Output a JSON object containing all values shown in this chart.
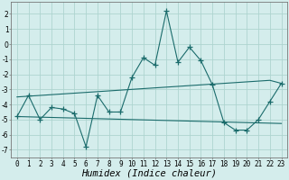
{
  "xlabel": "Humidex (Indice chaleur)",
  "background_color": "#d4edec",
  "grid_color": "#aed4d0",
  "line_color": "#1a6b6b",
  "x_values": [
    0,
    1,
    2,
    3,
    4,
    5,
    6,
    7,
    8,
    9,
    10,
    11,
    12,
    13,
    14,
    15,
    16,
    17,
    18,
    19,
    20,
    21,
    22,
    23
  ],
  "y_main": [
    -4.8,
    -3.4,
    -5.0,
    -4.2,
    -4.3,
    -4.6,
    -6.8,
    -3.4,
    -4.5,
    -4.5,
    -2.2,
    -0.9,
    -1.4,
    2.2,
    -1.2,
    -0.2,
    -1.1,
    -2.7,
    -5.2,
    -5.7,
    -5.7,
    -5.0,
    -3.8,
    -2.6
  ],
  "y_trend1": [
    -3.5,
    -3.45,
    -3.4,
    -3.35,
    -3.3,
    -3.25,
    -3.2,
    -3.15,
    -3.1,
    -3.05,
    -3.0,
    -2.95,
    -2.9,
    -2.85,
    -2.8,
    -2.75,
    -2.7,
    -2.65,
    -2.6,
    -2.55,
    -2.5,
    -2.45,
    -2.4,
    -2.6
  ],
  "y_trend2": [
    -4.8,
    -4.82,
    -4.84,
    -4.86,
    -4.88,
    -4.9,
    -4.92,
    -4.94,
    -4.96,
    -4.98,
    -5.0,
    -5.02,
    -5.04,
    -5.06,
    -5.08,
    -5.1,
    -5.12,
    -5.14,
    -5.16,
    -5.18,
    -5.2,
    -5.22,
    -5.24,
    -5.26
  ],
  "ylim": [
    -7.5,
    2.8
  ],
  "xlim": [
    -0.5,
    23.5
  ],
  "yticks": [
    -7,
    -6,
    -5,
    -4,
    -3,
    -2,
    -1,
    0,
    1,
    2
  ],
  "xticks": [
    0,
    1,
    2,
    3,
    4,
    5,
    6,
    7,
    8,
    9,
    10,
    11,
    12,
    13,
    14,
    15,
    16,
    17,
    18,
    19,
    20,
    21,
    22,
    23
  ],
  "tick_fontsize": 5.5,
  "label_fontsize": 7.5
}
